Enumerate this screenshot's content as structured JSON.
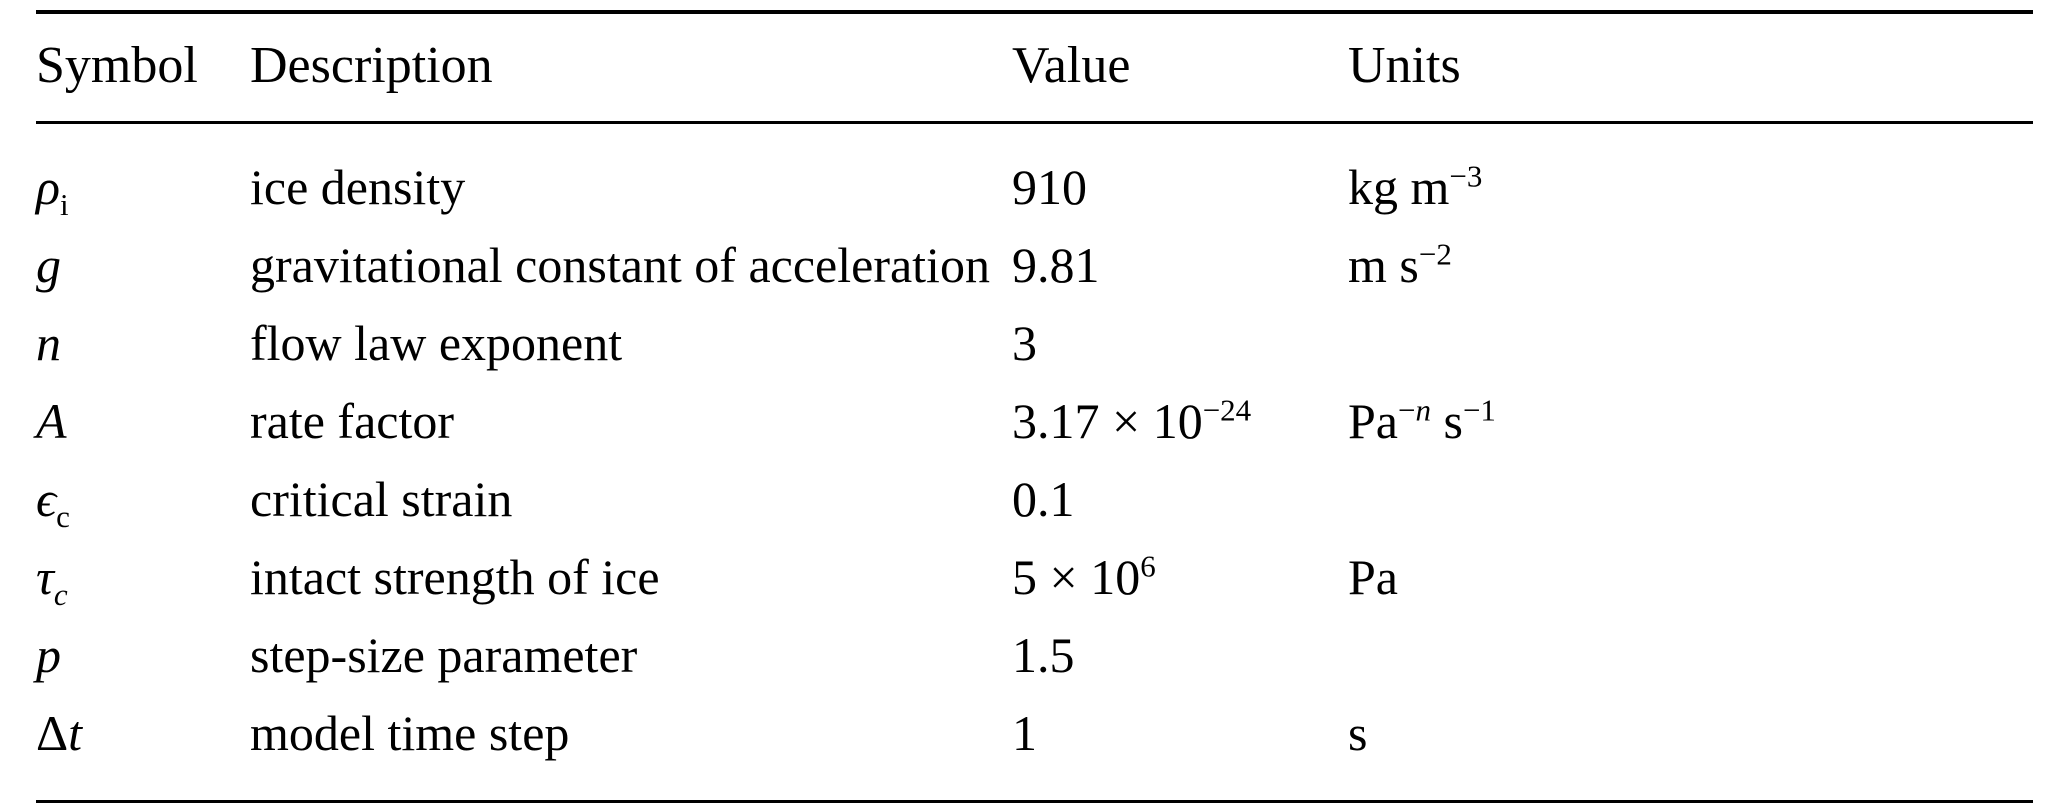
{
  "page": {
    "background": "#ffffff",
    "text_color": "#000000"
  },
  "table": {
    "headers": [
      "Symbol",
      "Description",
      "Value",
      "Units"
    ],
    "rows": [
      {
        "symbol": [
          {
            "t": "ρ",
            "i": true
          },
          {
            "t": "i",
            "sub": true
          }
        ],
        "description": "ice density",
        "value": [
          {
            "t": "910"
          }
        ],
        "units": [
          {
            "t": "kg m"
          },
          {
            "t": "−3",
            "sup": true
          }
        ]
      },
      {
        "symbol": [
          {
            "t": "g",
            "i": true
          }
        ],
        "description": "gravitational constant of acceleration",
        "value": [
          {
            "t": "9.81"
          }
        ],
        "units": [
          {
            "t": "m s"
          },
          {
            "t": "−2",
            "sup": true
          }
        ]
      },
      {
        "symbol": [
          {
            "t": "n",
            "i": true
          }
        ],
        "description": "flow law exponent",
        "value": [
          {
            "t": "3"
          }
        ],
        "units": []
      },
      {
        "symbol": [
          {
            "t": "A",
            "i": true
          }
        ],
        "description": "rate factor",
        "value": [
          {
            "t": "3.17 × 10"
          },
          {
            "t": "−24",
            "sup": true
          }
        ],
        "units": [
          {
            "t": "Pa"
          },
          {
            "t": "−",
            "sup": true
          },
          {
            "t": "n",
            "sup": true,
            "i": true
          },
          {
            "t": " s"
          },
          {
            "t": "−1",
            "sup": true
          }
        ]
      },
      {
        "symbol": [
          {
            "t": "ϵ",
            "i": true
          },
          {
            "t": "c",
            "sub": true
          }
        ],
        "description": "critical strain",
        "value": [
          {
            "t": "0.1"
          }
        ],
        "units": []
      },
      {
        "symbol": [
          {
            "t": "τ",
            "i": true
          },
          {
            "t": "c",
            "sub": true,
            "i": true
          }
        ],
        "description": "intact strength of ice",
        "value": [
          {
            "t": "5 × 10"
          },
          {
            "t": "6",
            "sup": true
          }
        ],
        "units": [
          {
            "t": "Pa"
          }
        ]
      },
      {
        "symbol": [
          {
            "t": "p",
            "i": true
          }
        ],
        "description": "step-size parameter",
        "value": [
          {
            "t": "1.5"
          }
        ],
        "units": []
      },
      {
        "symbol": [
          {
            "t": "Δ"
          },
          {
            "t": "t",
            "i": true
          }
        ],
        "description": "model time step",
        "value": [
          {
            "t": "1"
          }
        ],
        "units": [
          {
            "t": "s"
          }
        ]
      }
    ]
  }
}
